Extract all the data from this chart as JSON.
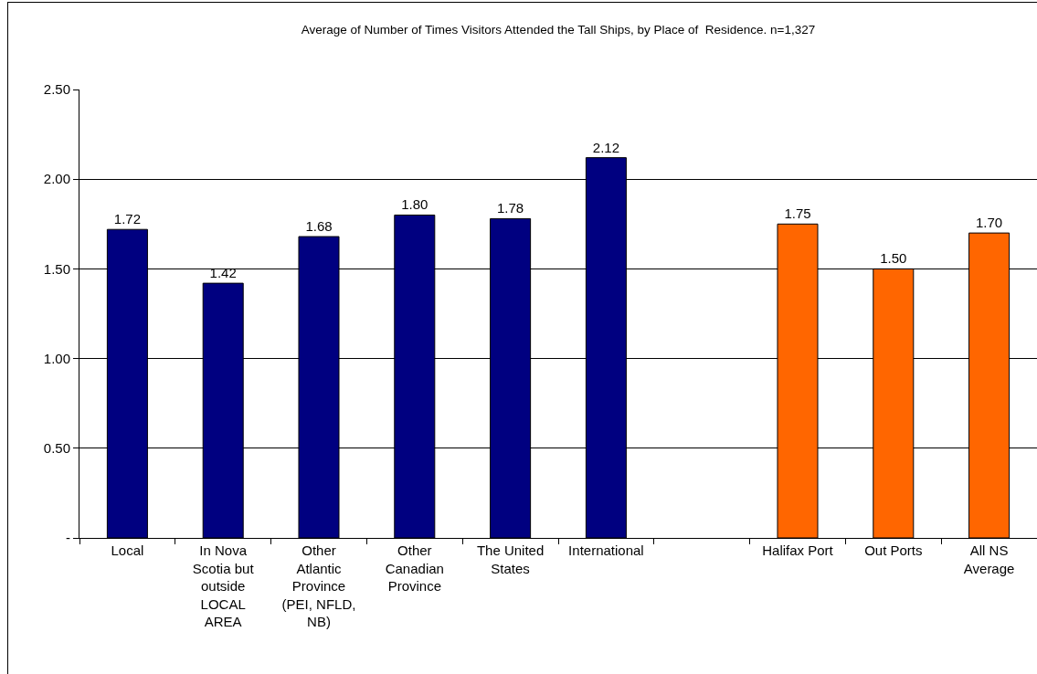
{
  "chart_data": {
    "type": "bar",
    "title": "Average of Number of Times Visitors Attended the Tall Ships, by Place of  Residence. n=1,327",
    "categories": [
      "Local",
      "In Nova Scotia but outside LOCAL AREA",
      "Other Atlantic Province (PEI, NFLD, NB)",
      "Other Canadian Province",
      "The United States",
      "International",
      null,
      "Halifax Port",
      "Out Ports",
      "All NS Average"
    ],
    "values": [
      1.72,
      1.42,
      1.68,
      1.8,
      1.78,
      2.12,
      null,
      1.75,
      1.5,
      1.7
    ],
    "value_labels": [
      "1.72",
      "1.42",
      "1.68",
      "1.80",
      "1.78",
      "2.12",
      null,
      "1.75",
      "1.50",
      "1.70"
    ],
    "colors": [
      "#000080",
      "#000080",
      "#000080",
      "#000080",
      "#000080",
      "#000080",
      null,
      "#ff6600",
      "#ff6600",
      "#ff6600"
    ],
    "ylim": [
      0,
      2.5
    ],
    "yticks": [
      {
        "value": 0,
        "label": "-"
      },
      {
        "value": 0.5,
        "label": "0.50"
      },
      {
        "value": 1,
        "label": "1.00"
      },
      {
        "value": 1.5,
        "label": "1.50"
      },
      {
        "value": 2,
        "label": "2.00"
      },
      {
        "value": 2.5,
        "label": "2.50"
      }
    ],
    "grid": "y"
  }
}
